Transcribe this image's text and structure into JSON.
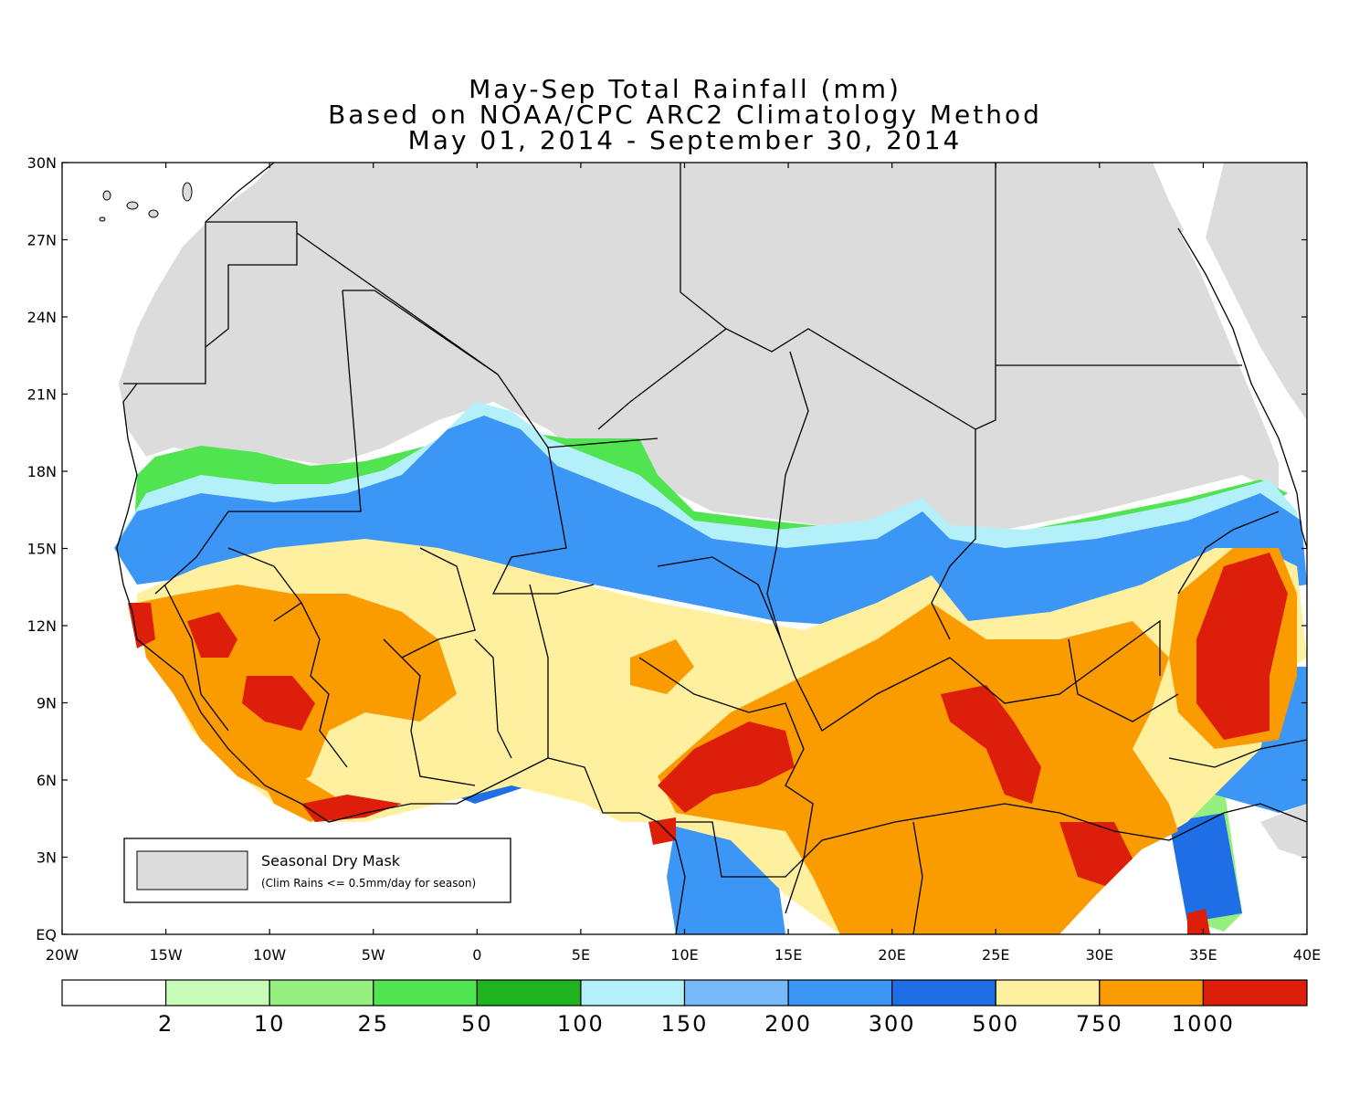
{
  "title": {
    "line1": "May-Sep Total Rainfall (mm)",
    "line2": "Based on NOAA/CPC ARC2 Climatology Method",
    "line3": "May 01, 2014 - September 30, 2014"
  },
  "axes": {
    "lat_labels": [
      "30N",
      "27N",
      "24N",
      "21N",
      "18N",
      "15N",
      "12N",
      "9N",
      "6N",
      "3N",
      "EQ"
    ],
    "lon_labels": [
      "20W",
      "15W",
      "10W",
      "5W",
      "0",
      "5E",
      "10E",
      "15E",
      "20E",
      "25E",
      "30E",
      "35E",
      "40E"
    ]
  },
  "legend_box": {
    "label": "Seasonal Dry Mask",
    "note": "(Clim Rains <= 0.5mm/day for season)",
    "mask_color": "#dcdcdc"
  },
  "colorbar": {
    "colors": [
      "#ffffff",
      "#c8fcb8",
      "#96f080",
      "#50e450",
      "#1eb41e",
      "#b4f0fa",
      "#78b9fa",
      "#3c96f5",
      "#1e6ee6",
      "#fff0a0",
      "#fa9b00",
      "#dc1e0a"
    ],
    "tick_labels": [
      "2",
      "10",
      "25",
      "50",
      "100",
      "150",
      "200",
      "300",
      "500",
      "750",
      "1000"
    ]
  },
  "colors": {
    "dry_mask": "#dcdcdc",
    "ocean": "#ffffff",
    "border": "#000000"
  }
}
